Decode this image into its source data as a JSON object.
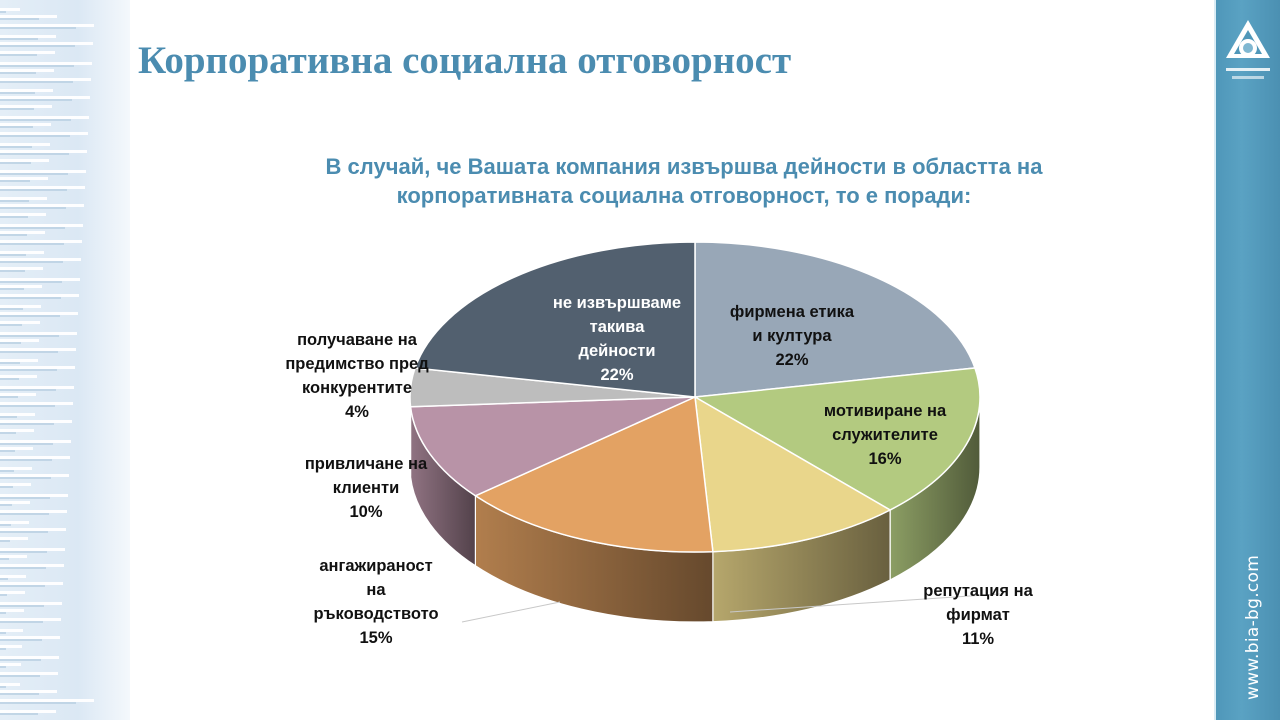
{
  "slide": {
    "title": "Корпоративна социална отговорност",
    "website": "www.bia-bg.com"
  },
  "chart_data": {
    "type": "pie",
    "title": "В случай, че Вашата компания извършва дейности в областта на корпоративната социална отговорност, то е поради:",
    "slices": [
      {
        "label": "фирмена етика и култура",
        "lines": [
          "фирмена етика",
          "и култура"
        ],
        "value": 22,
        "pct": "22%",
        "color": "#98a7b7"
      },
      {
        "label": "мотивиране на служителите",
        "lines": [
          "мотивиране на",
          "служителите"
        ],
        "value": 16,
        "pct": "16%",
        "color": "#b3ca80"
      },
      {
        "label": "репутация на фирмат",
        "lines": [
          "репутация на",
          "фирмат"
        ],
        "value": 11,
        "pct": "11%",
        "color": "#e9d68b"
      },
      {
        "label": "ангажираност на ръководството",
        "lines": [
          "ангажираност",
          "на",
          "ръководството"
        ],
        "value": 15,
        "pct": "15%",
        "color": "#e3a263"
      },
      {
        "label": "привличане на клиенти",
        "lines": [
          "привличане на",
          "клиенти"
        ],
        "value": 10,
        "pct": "10%",
        "color": "#b893a7"
      },
      {
        "label": "получаване на предимство пред конкурентите",
        "lines": [
          "получаване на",
          "предимство пред",
          "конкурентите"
        ],
        "value": 4,
        "pct": "4%",
        "color": "#bdbdbd"
      },
      {
        "label": "не извършваме такива дейности",
        "lines": [
          "не извършваме",
          "такива",
          "дейности"
        ],
        "value": 22,
        "pct": "22%",
        "color": "#52606f"
      }
    ],
    "legend": "none",
    "start": "12 o'clock, clockwise"
  }
}
